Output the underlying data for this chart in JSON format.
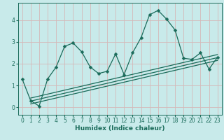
{
  "xlabel": "Humidex (Indice chaleur)",
  "background_color": "#c8eaea",
  "line_color": "#1a6b5a",
  "grid_color": "#d4b8b8",
  "xlim": [
    -0.5,
    23.5
  ],
  "ylim": [
    -0.35,
    4.8
  ],
  "xticks": [
    0,
    1,
    2,
    3,
    4,
    5,
    6,
    7,
    8,
    9,
    10,
    11,
    12,
    13,
    14,
    15,
    16,
    17,
    18,
    19,
    20,
    21,
    22,
    23
  ],
  "yticks": [
    0,
    1,
    2,
    3,
    4
  ],
  "main_series_x": [
    0,
    1,
    2,
    3,
    4,
    5,
    6,
    7,
    8,
    9,
    10,
    11,
    12,
    13,
    14,
    15,
    16,
    17,
    18,
    19,
    20,
    21,
    22,
    23
  ],
  "main_series_y": [
    1.3,
    0.3,
    0.05,
    1.3,
    1.85,
    2.8,
    2.95,
    2.55,
    1.85,
    1.55,
    1.65,
    2.45,
    1.5,
    2.5,
    3.2,
    4.25,
    4.45,
    4.05,
    3.55,
    2.25,
    2.2,
    2.5,
    1.75,
    2.3
  ],
  "trend1_x": [
    1,
    23
  ],
  "trend1_y": [
    0.15,
    2.15
  ],
  "trend2_x": [
    1,
    23
  ],
  "trend2_y": [
    0.28,
    2.28
  ],
  "trend3_x": [
    1,
    23
  ],
  "trend3_y": [
    0.42,
    2.42
  ],
  "marker_size": 2.5,
  "line_width": 0.9,
  "font_size_tick": 5.5,
  "font_size_label": 6.5
}
